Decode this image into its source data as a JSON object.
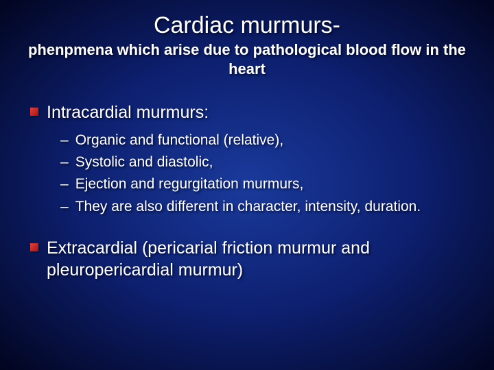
{
  "slide": {
    "title": "Cardiac murmurs-",
    "subtitle": "phenpmena which arise due to pathological blood flow in the heart",
    "background": {
      "gradient_center": "#1a3a9c",
      "gradient_mid": "#0d1f6e",
      "gradient_edge": "#020520"
    },
    "text_color": "#ffffff",
    "bullet_color": "#cc2222",
    "title_fontsize": 34,
    "subtitle_fontsize": 22,
    "level1_fontsize": 25,
    "level2_fontsize": 21,
    "items": [
      {
        "text": "Intracardial murmurs:",
        "sub": [
          "Organic and functional (relative),",
          "Systolic and diastolic,",
          "Ejection and regurgitation murmurs,",
          "They are also different in character, intensity, duration."
        ]
      },
      {
        "text": "Extracardial (pericarial friction murmur and pleuropericardial murmur)",
        "sub": []
      }
    ]
  }
}
